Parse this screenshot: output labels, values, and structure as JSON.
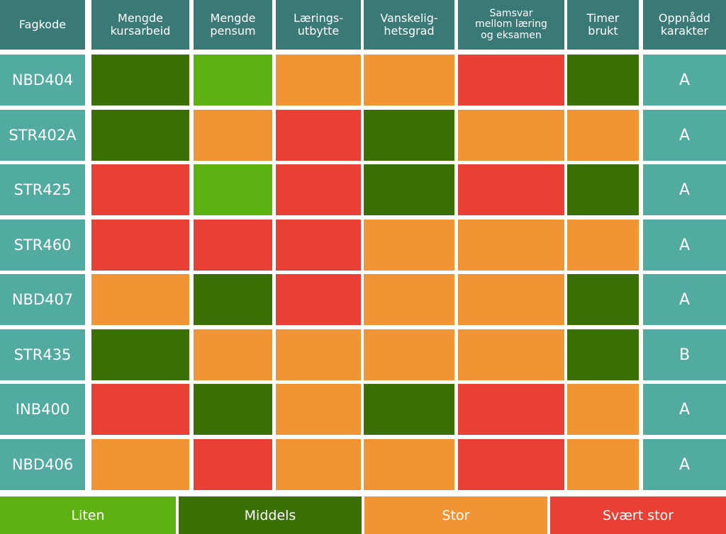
{
  "chart_data": {
    "type": "heatmap",
    "title": "",
    "columns": [
      "Fagkode",
      "Mengde kursarbeid",
      "Mengde pensum",
      "Lærings-utbytte",
      "Vanskelig-hetsgrad",
      "Samsvar mellom læring og eksamen",
      "Timer brukt",
      "Oppnådd karakter"
    ],
    "column_lines": [
      [
        "Fagkode"
      ],
      [
        "Mengde",
        "kursarbeid"
      ],
      [
        "Mengde",
        "pensum"
      ],
      [
        "Lærings-",
        "utbytte"
      ],
      [
        "Vanskelig-",
        "hetsgrad"
      ],
      [
        "Samsvar",
        "mellom læring",
        "og eksamen"
      ],
      [
        "Timer",
        "brukt"
      ],
      [
        "Oppnådd",
        "karakter"
      ]
    ],
    "levels": [
      "Liten",
      "Middels",
      "Stor",
      "Svært stor"
    ],
    "level_colors": {
      "Liten": "#5db110",
      "Middels": "#3a7006",
      "Stor": "#f19433",
      "Svært stor": "#e84034"
    },
    "header_color": "#3a7a76",
    "label_color": "#52aba1",
    "rows": [
      {
        "fagkode": "NBD404",
        "values": [
          "Middels",
          "Liten",
          "Stor",
          "Stor",
          "Svært stor",
          "Middels"
        ],
        "karakter": "A"
      },
      {
        "fagkode": "STR402A",
        "values": [
          "Middels",
          "Stor",
          "Svært stor",
          "Middels",
          "Stor",
          "Stor"
        ],
        "karakter": "A"
      },
      {
        "fagkode": "STR425",
        "values": [
          "Svært stor",
          "Liten",
          "Svært stor",
          "Middels",
          "Svært stor",
          "Middels"
        ],
        "karakter": "A"
      },
      {
        "fagkode": "STR460",
        "values": [
          "Svært stor",
          "Svært stor",
          "Svært stor",
          "Stor",
          "Stor",
          "Stor"
        ],
        "karakter": "A"
      },
      {
        "fagkode": "NBD407",
        "values": [
          "Stor",
          "Middels",
          "Svært stor",
          "Stor",
          "Stor",
          "Middels"
        ],
        "karakter": "A"
      },
      {
        "fagkode": "STR435",
        "values": [
          "Middels",
          "Stor",
          "Stor",
          "Stor",
          "Stor",
          "Middels"
        ],
        "karakter": "B"
      },
      {
        "fagkode": "INB400",
        "values": [
          "Svært stor",
          "Middels",
          "Stor",
          "Middels",
          "Svært stor",
          "Stor"
        ],
        "karakter": "A"
      },
      {
        "fagkode": "NBD406",
        "values": [
          "Stor",
          "Svært stor",
          "Stor",
          "Stor",
          "Svært stor",
          "Stor"
        ],
        "karakter": "A"
      }
    ],
    "legend": {
      "position": "bottom",
      "entries": [
        "Liten",
        "Middels",
        "Stor",
        "Svært stor"
      ]
    }
  }
}
